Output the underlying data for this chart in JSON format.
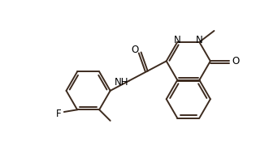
{
  "bg_color": "#ffffff",
  "bond_color": "#3d2b1f",
  "text_color": "#000000",
  "bond_width": 1.4,
  "figsize": [
    3.15,
    1.85
  ],
  "dpi": 100,
  "xlim": [
    0,
    9.5
  ],
  "ylim": [
    0,
    5.5
  ]
}
